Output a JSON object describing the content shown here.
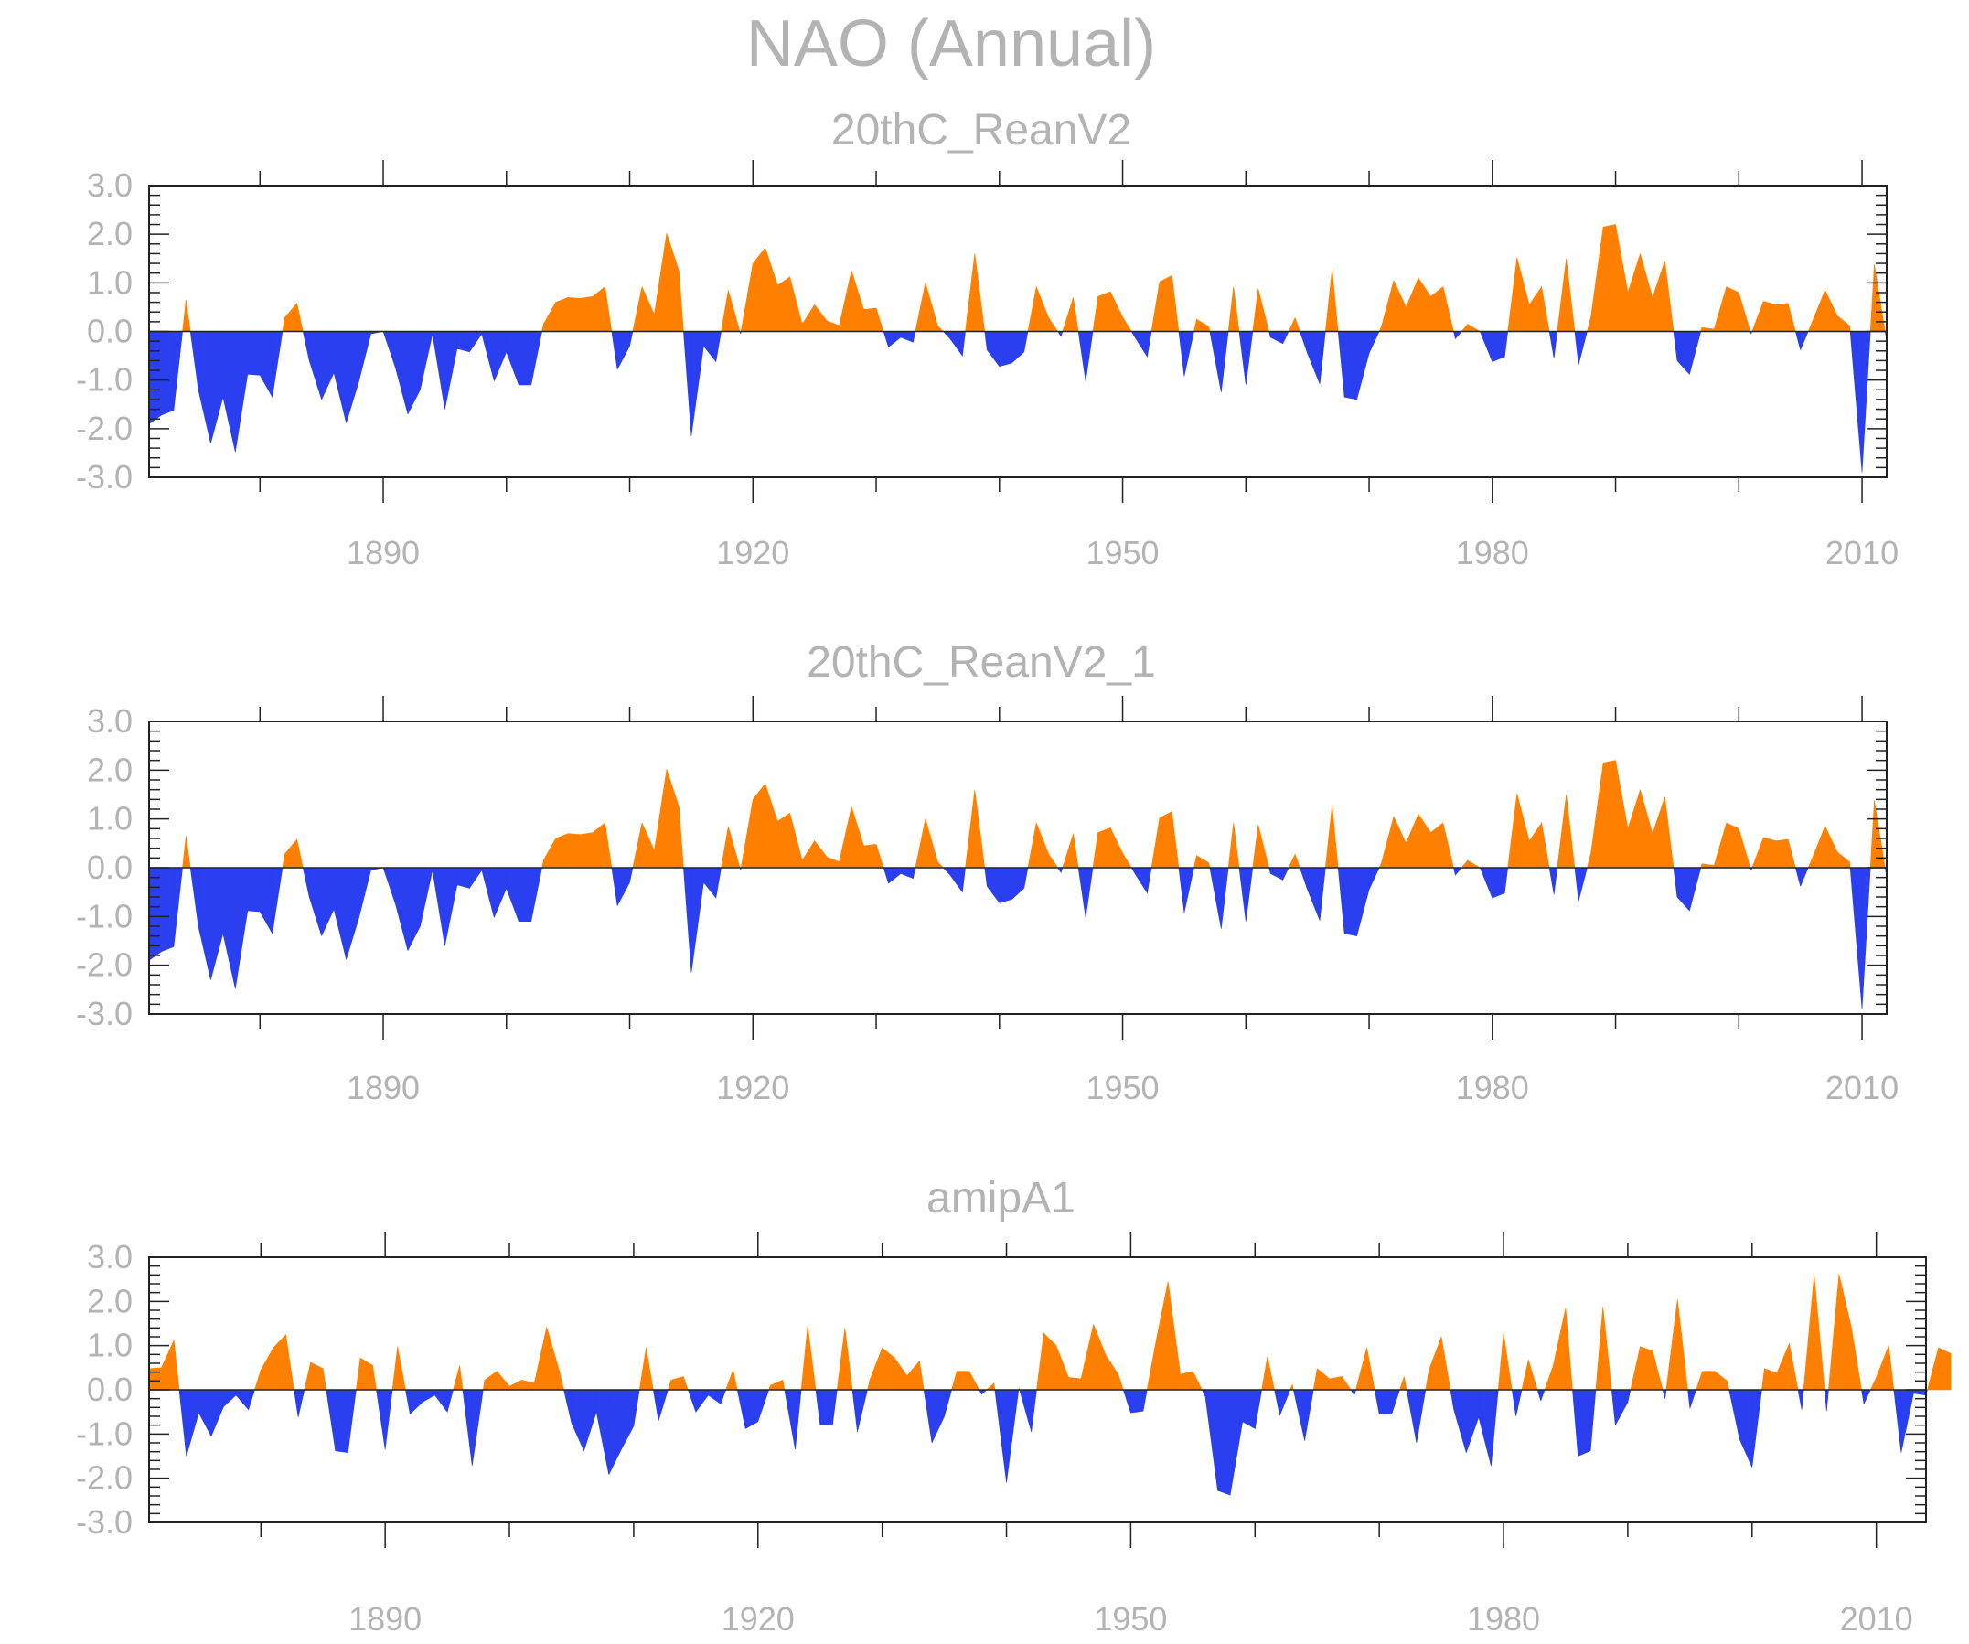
{
  "title": "NAO (Annual)",
  "colors": {
    "positive": "#ff8000",
    "negative": "#2a3ff0",
    "axis": "#222222",
    "text": "#b3b3b3"
  },
  "chart_data": [
    {
      "type": "area",
      "title": "20thC_ReanV2",
      "xlim": [
        1871,
        2012
      ],
      "ylim": [
        -3.0,
        3.0
      ],
      "yticks": [
        "3.0",
        "2.0",
        "1.0",
        "0.0",
        "-1.0",
        "-2.0",
        "-3.0"
      ],
      "xticks": [
        "1890",
        "1920",
        "1950",
        "1980",
        "2010"
      ],
      "x_start": 1871,
      "values": [
        -1.9,
        -1.72,
        -1.62,
        0.65,
        -1.2,
        -2.3,
        -1.35,
        -2.48,
        -0.88,
        -0.9,
        -1.35,
        0.28,
        0.58,
        -0.6,
        -1.4,
        -0.85,
        -1.88,
        -1.05,
        -0.05,
        0.0,
        -0.75,
        -1.7,
        -1.2,
        -0.05,
        -1.6,
        -0.35,
        -0.42,
        -0.05,
        -1.02,
        -0.42,
        -1.1,
        -1.1,
        0.15,
        0.6,
        0.7,
        0.68,
        0.72,
        0.92,
        -0.78,
        -0.3,
        0.92,
        0.35,
        2.02,
        1.25,
        -2.15,
        -0.3,
        -0.62,
        0.85,
        -0.05,
        1.4,
        1.72,
        0.95,
        1.12,
        0.15,
        0.55,
        0.22,
        0.12,
        1.25,
        0.45,
        0.48,
        -0.32,
        -0.12,
        -0.22,
        1.0,
        0.12,
        -0.15,
        -0.5,
        1.6,
        -0.38,
        -0.72,
        -0.65,
        -0.42,
        0.92,
        0.28,
        -0.1,
        0.7,
        -1.02,
        0.72,
        0.82,
        0.3,
        -0.12,
        -0.52,
        1.02,
        1.15,
        -0.92,
        0.25,
        0.1,
        -1.25,
        0.92,
        -1.1,
        0.88,
        -0.12,
        -0.25,
        0.28,
        -0.45,
        -1.08,
        1.28,
        -1.35,
        -1.4,
        -0.45,
        0.1,
        1.05,
        0.5,
        1.1,
        0.72,
        0.92,
        -0.15,
        0.15,
        0.0,
        -0.62,
        -0.52,
        1.52,
        0.55,
        0.92,
        -0.55,
        1.5,
        -0.68,
        0.3,
        2.15,
        2.2,
        0.8,
        1.6,
        0.7,
        1.45,
        -0.6,
        -0.88,
        0.08,
        0.05,
        0.92,
        0.8,
        -0.05,
        0.62,
        0.55,
        0.58,
        -0.38,
        0.22,
        0.85,
        0.32,
        0.12,
        -2.9,
        1.38,
        -0.2
      ]
    },
    {
      "type": "area",
      "title": "20thC_ReanV2_1",
      "xlim": [
        1871,
        2012
      ],
      "ylim": [
        -3.0,
        3.0
      ],
      "yticks": [
        "3.0",
        "2.0",
        "1.0",
        "0.0",
        "-1.0",
        "-2.0",
        "-3.0"
      ],
      "xticks": [
        "1890",
        "1920",
        "1950",
        "1980",
        "2010"
      ],
      "x_start": 1871,
      "values": [
        -1.9,
        -1.72,
        -1.62,
        0.65,
        -1.2,
        -2.3,
        -1.35,
        -2.48,
        -0.88,
        -0.9,
        -1.35,
        0.28,
        0.58,
        -0.6,
        -1.4,
        -0.85,
        -1.88,
        -1.05,
        -0.05,
        0.0,
        -0.75,
        -1.7,
        -1.2,
        -0.05,
        -1.6,
        -0.35,
        -0.42,
        -0.05,
        -1.02,
        -0.42,
        -1.1,
        -1.1,
        0.15,
        0.6,
        0.7,
        0.68,
        0.72,
        0.92,
        -0.78,
        -0.3,
        0.92,
        0.35,
        2.02,
        1.25,
        -2.15,
        -0.3,
        -0.62,
        0.85,
        -0.05,
        1.4,
        1.72,
        0.95,
        1.12,
        0.15,
        0.55,
        0.22,
        0.12,
        1.25,
        0.45,
        0.48,
        -0.32,
        -0.12,
        -0.22,
        1.0,
        0.12,
        -0.15,
        -0.5,
        1.6,
        -0.38,
        -0.72,
        -0.65,
        -0.42,
        0.92,
        0.28,
        -0.1,
        0.7,
        -1.02,
        0.72,
        0.82,
        0.3,
        -0.12,
        -0.52,
        1.02,
        1.15,
        -0.92,
        0.25,
        0.1,
        -1.25,
        0.92,
        -1.1,
        0.88,
        -0.12,
        -0.25,
        0.28,
        -0.45,
        -1.08,
        1.28,
        -1.35,
        -1.4,
        -0.45,
        0.1,
        1.05,
        0.5,
        1.1,
        0.72,
        0.92,
        -0.15,
        0.15,
        0.0,
        -0.62,
        -0.52,
        1.52,
        0.55,
        0.92,
        -0.55,
        1.5,
        -0.68,
        0.3,
        2.15,
        2.2,
        0.8,
        1.6,
        0.7,
        1.45,
        -0.6,
        -0.88,
        0.08,
        0.05,
        0.92,
        0.8,
        -0.05,
        0.62,
        0.55,
        0.58,
        -0.38,
        0.22,
        0.85,
        0.32,
        0.12,
        -2.9,
        1.38,
        -0.2
      ]
    },
    {
      "type": "area",
      "title": "amipA1",
      "xlim": [
        1871,
        2014
      ],
      "ylim": [
        -3.0,
        3.0
      ],
      "yticks": [
        "3.0",
        "2.0",
        "1.0",
        "0.0",
        "-1.0",
        "-2.0",
        "-3.0"
      ],
      "xticks": [
        "1890",
        "1920",
        "1950",
        "1980",
        "2010"
      ],
      "x_start": 1871,
      "values": [
        0.48,
        0.5,
        1.12,
        -1.5,
        -0.52,
        -1.05,
        -0.38,
        -0.12,
        -0.45,
        0.45,
        0.95,
        1.25,
        -0.62,
        0.62,
        0.48,
        -1.38,
        -1.42,
        0.72,
        0.55,
        -1.35,
        0.98,
        -0.55,
        -0.28,
        -0.12,
        -0.5,
        0.55,
        -1.72,
        0.22,
        0.42,
        0.08,
        0.22,
        0.15,
        1.42,
        0.45,
        -0.75,
        -1.38,
        -0.5,
        -1.92,
        -1.35,
        -0.82,
        0.95,
        -0.7,
        0.22,
        0.3,
        -0.5,
        -0.12,
        -0.32,
        0.45,
        -0.88,
        -0.72,
        0.1,
        0.22,
        -1.35,
        1.45,
        -0.78,
        -0.8,
        1.4,
        -0.95,
        0.22,
        0.95,
        0.72,
        0.32,
        0.65,
        -1.2,
        -0.6,
        0.42,
        0.42,
        -0.1,
        0.15,
        -2.1,
        0.05,
        -0.95,
        1.28,
        1.0,
        0.28,
        0.25,
        1.48,
        0.78,
        0.35,
        -0.52,
        -0.48,
        1.05,
        2.45,
        0.35,
        0.42,
        -0.15,
        -2.28,
        -2.38,
        -0.72,
        -0.88,
        0.75,
        -0.58,
        0.12,
        -1.15,
        0.48,
        0.25,
        0.3,
        -0.12,
        0.95,
        -0.55,
        -0.55,
        0.3,
        -1.2,
        0.45,
        1.2,
        -0.45,
        -1.42,
        -0.62,
        -1.72,
        1.28,
        -0.6,
        0.68,
        -0.25,
        0.55,
        1.85,
        -1.5,
        -1.38,
        1.88,
        -0.8,
        -0.28,
        0.98,
        0.88,
        -0.2,
        2.05,
        -0.42,
        0.42,
        0.42,
        0.2,
        -1.12,
        -1.75,
        0.48,
        0.38,
        1.05,
        -0.45,
        2.6,
        -0.48,
        2.62,
        1.4,
        -0.32,
        0.28,
        1.0,
        -1.42,
        -0.08,
        -0.12,
        0.95,
        0.82
      ]
    }
  ]
}
